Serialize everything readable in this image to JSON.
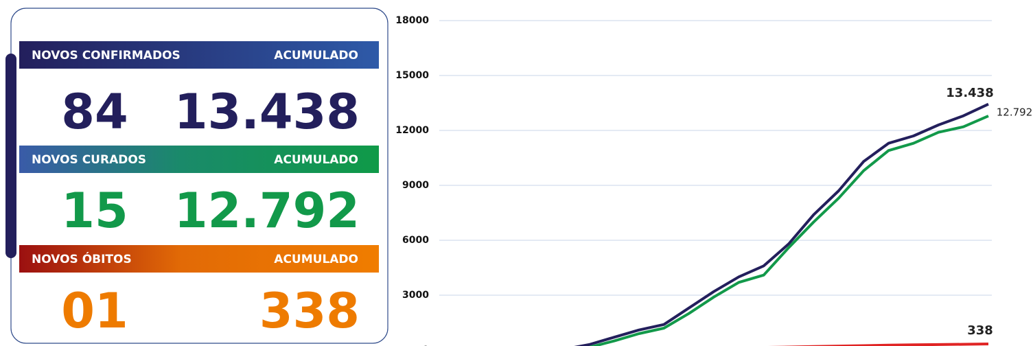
{
  "panel": {
    "sections": [
      {
        "label": "NOVOS CONFIRMADOS",
        "accumulated_label": "ACUMULADO",
        "new": "84",
        "total": "13.438"
      },
      {
        "label": "NOVOS CURADOS",
        "accumulated_label": "ACUMULADO",
        "new": "15",
        "total": "12.792"
      },
      {
        "label": "NOVOS ÓBITOS",
        "accumulated_label": "ACUMULADO",
        "new": "01",
        "total": "338"
      }
    ]
  },
  "chart_data": {
    "type": "line",
    "categories": [
      null,
      null,
      null,
      null,
      null,
      null,
      null,
      null,
      null,
      null,
      null,
      null,
      null,
      null,
      null,
      null,
      null,
      null,
      null,
      null,
      null,
      null,
      null
    ],
    "series": [
      {
        "name": "Confirmados",
        "color": "#231f5c",
        "values": [
          0,
          0,
          0,
          0,
          0,
          50,
          300,
          700,
          1100,
          1400,
          2300,
          3200,
          4000,
          4600,
          5800,
          7400,
          8700,
          10300,
          11300,
          11700,
          12300,
          12800,
          13438
        ],
        "value_labels": [
          null,
          null,
          null,
          null,
          null,
          null,
          null,
          null,
          null,
          null,
          null,
          null,
          null,
          null,
          null,
          null,
          null,
          null,
          null,
          null,
          null,
          null,
          "13.438"
        ]
      },
      {
        "name": "Curados",
        "color": "#12994a",
        "values": [
          0,
          0,
          0,
          0,
          0,
          20,
          150,
          500,
          900,
          1200,
          2000,
          2900,
          3700,
          4100,
          5600,
          7000,
          8300,
          9800,
          10900,
          11300,
          11900,
          12200,
          12792
        ],
        "value_labels": [
          null,
          null,
          null,
          null,
          null,
          null,
          null,
          null,
          null,
          null,
          null,
          null,
          null,
          null,
          null,
          null,
          null,
          null,
          null,
          null,
          null,
          null,
          "12.792"
        ]
      },
      {
        "name": "Óbitos",
        "color": "#e02424",
        "values": [
          0,
          0,
          0,
          0,
          0,
          2,
          10,
          20,
          35,
          50,
          70,
          95,
          120,
          145,
          170,
          195,
          220,
          245,
          270,
          290,
          305,
          320,
          338
        ],
        "value_labels": [
          null,
          null,
          null,
          null,
          null,
          null,
          null,
          null,
          null,
          null,
          null,
          null,
          null,
          null,
          null,
          null,
          null,
          null,
          null,
          null,
          null,
          null,
          "338"
        ]
      }
    ],
    "ylim": [
      0,
      18000
    ],
    "yticks": [
      0,
      3000,
      6000,
      9000,
      12000,
      15000,
      18000
    ],
    "grid": true,
    "legend": false
  }
}
